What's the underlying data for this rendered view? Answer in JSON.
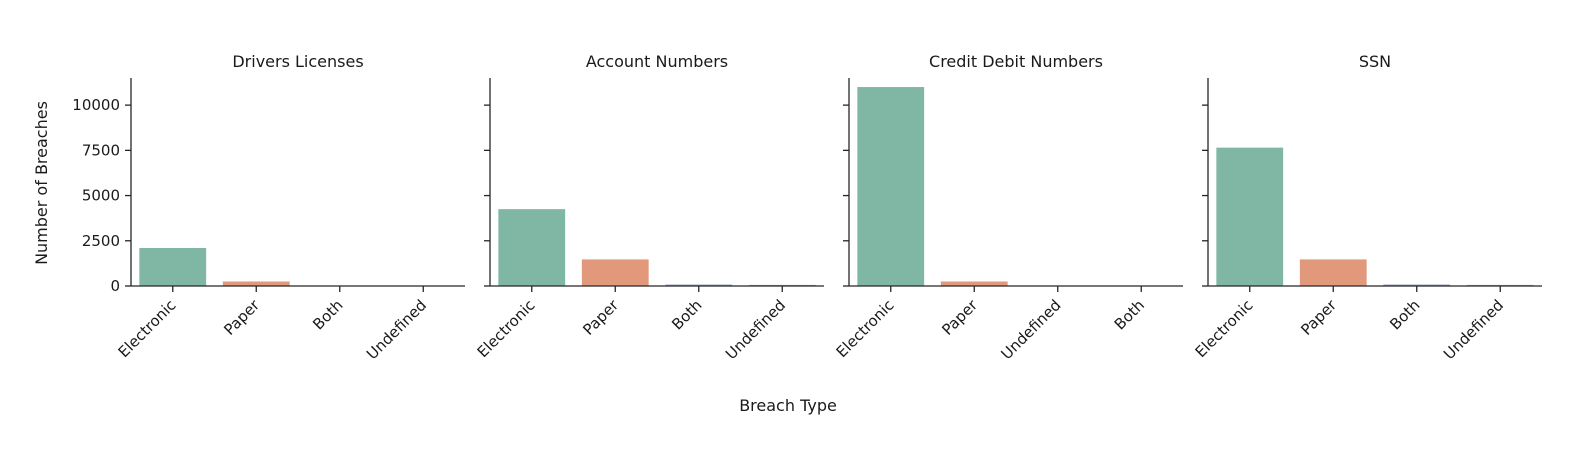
{
  "chart_data": {
    "type": "bar",
    "xlabel": "Breach Type",
    "ylabel": "Number of Breaches",
    "ylim": [
      0,
      11500
    ],
    "yticks": [
      0,
      2500,
      5000,
      7500,
      10000
    ],
    "grid": false,
    "colors": {
      "Electronic": "#80b6a4",
      "Paper": "#e2987a",
      "Both": "#8f9fc8",
      "Undefined": "#cf8dc2"
    },
    "panels": [
      {
        "title": "Drivers Licenses",
        "categories": [
          "Electronic",
          "Paper",
          "Both",
          "Undefined"
        ],
        "values": [
          2100,
          250,
          15,
          10
        ]
      },
      {
        "title": "Account Numbers",
        "categories": [
          "Electronic",
          "Paper",
          "Both",
          "Undefined"
        ],
        "values": [
          4250,
          1470,
          80,
          60
        ]
      },
      {
        "title": "Credit Debit Numbers",
        "categories": [
          "Electronic",
          "Paper",
          "Undefined",
          "Both"
        ],
        "values": [
          11000,
          250,
          15,
          10
        ]
      },
      {
        "title": "SSN",
        "categories": [
          "Electronic",
          "Paper",
          "Both",
          "Undefined"
        ],
        "values": [
          7650,
          1470,
          80,
          60
        ]
      }
    ]
  }
}
